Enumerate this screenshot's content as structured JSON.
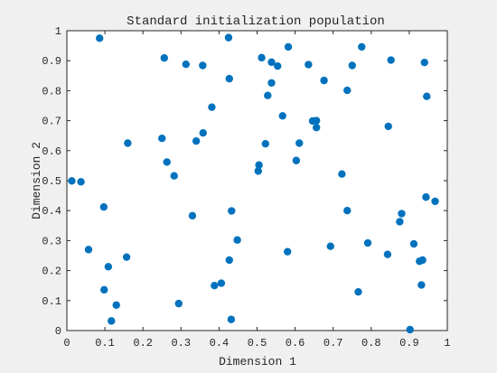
{
  "chart_data": {
    "type": "scatter",
    "title": "Standard initialization population",
    "xlabel": "Dimension 1",
    "ylabel": "Dimension 2",
    "xlim": [
      0,
      1
    ],
    "ylim": [
      0,
      1
    ],
    "xticks": [
      "0",
      "0.1",
      "0.2",
      "0.3",
      "0.4",
      "0.5",
      "0.6",
      "0.7",
      "0.8",
      "0.9",
      "1"
    ],
    "yticks": [
      "0",
      "0.1",
      "0.2",
      "0.3",
      "0.4",
      "0.5",
      "0.6",
      "0.7",
      "0.8",
      "0.9",
      "1"
    ],
    "grid": false,
    "marker_color": "#0072BD",
    "background_color": "#ffffff",
    "figure_color": "#f0f0f0",
    "points": [
      [
        0.086,
        0.975
      ],
      [
        0.425,
        0.977
      ],
      [
        0.256,
        0.909
      ],
      [
        0.313,
        0.888
      ],
      [
        0.357,
        0.884
      ],
      [
        0.512,
        0.91
      ],
      [
        0.582,
        0.946
      ],
      [
        0.775,
        0.946
      ],
      [
        0.538,
        0.895
      ],
      [
        0.554,
        0.882
      ],
      [
        0.635,
        0.887
      ],
      [
        0.75,
        0.884
      ],
      [
        0.852,
        0.902
      ],
      [
        0.94,
        0.894
      ],
      [
        0.427,
        0.84
      ],
      [
        0.538,
        0.826
      ],
      [
        0.528,
        0.784
      ],
      [
        0.676,
        0.834
      ],
      [
        0.737,
        0.801
      ],
      [
        0.946,
        0.781
      ],
      [
        0.381,
        0.745
      ],
      [
        0.567,
        0.716
      ],
      [
        0.646,
        0.699
      ],
      [
        0.656,
        0.7
      ],
      [
        0.656,
        0.677
      ],
      [
        0.845,
        0.681
      ],
      [
        0.358,
        0.659
      ],
      [
        0.34,
        0.632
      ],
      [
        0.25,
        0.641
      ],
      [
        0.16,
        0.625
      ],
      [
        0.522,
        0.623
      ],
      [
        0.611,
        0.625
      ],
      [
        0.263,
        0.562
      ],
      [
        0.603,
        0.567
      ],
      [
        0.505,
        0.552
      ],
      [
        0.503,
        0.532
      ],
      [
        0.723,
        0.522
      ],
      [
        0.282,
        0.516
      ],
      [
        0.013,
        0.499
      ],
      [
        0.037,
        0.496
      ],
      [
        0.944,
        0.445
      ],
      [
        0.968,
        0.431
      ],
      [
        0.097,
        0.412
      ],
      [
        0.433,
        0.399
      ],
      [
        0.737,
        0.4
      ],
      [
        0.88,
        0.39
      ],
      [
        0.875,
        0.363
      ],
      [
        0.33,
        0.383
      ],
      [
        0.448,
        0.302
      ],
      [
        0.057,
        0.27
      ],
      [
        0.693,
        0.281
      ],
      [
        0.791,
        0.292
      ],
      [
        0.912,
        0.289
      ],
      [
        0.58,
        0.263
      ],
      [
        0.843,
        0.254
      ],
      [
        0.157,
        0.245
      ],
      [
        0.427,
        0.235
      ],
      [
        0.935,
        0.235
      ],
      [
        0.927,
        0.231
      ],
      [
        0.109,
        0.213
      ],
      [
        0.406,
        0.158
      ],
      [
        0.388,
        0.15
      ],
      [
        0.932,
        0.152
      ],
      [
        0.098,
        0.136
      ],
      [
        0.766,
        0.129
      ],
      [
        0.294,
        0.09
      ],
      [
        0.13,
        0.085
      ],
      [
        0.117,
        0.032
      ],
      [
        0.432,
        0.037
      ],
      [
        0.902,
        0.003
      ]
    ]
  }
}
